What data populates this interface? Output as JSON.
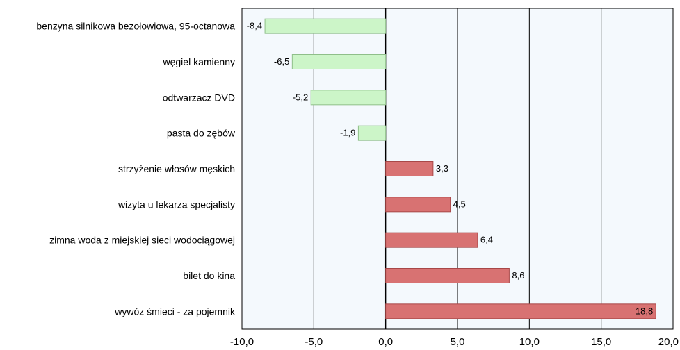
{
  "chart_data": {
    "type": "bar",
    "orientation": "horizontal",
    "categories": [
      "benzyna silnikowa bezołowiowa, 95-octanowa",
      "węgiel kamienny",
      "odtwarzacz DVD",
      "pasta do zębów",
      "strzyżenie włosów męskich",
      "wizyta u lekarza specjalisty",
      "zimna woda z miejskiej sieci wodociągowej",
      "bilet do kina",
      "wywóz śmieci - za pojemnik"
    ],
    "values": [
      -8.4,
      -6.5,
      -5.2,
      -1.9,
      3.3,
      4.5,
      6.4,
      8.6,
      18.8
    ],
    "value_labels": [
      "-8,4",
      "-6,5",
      "-5,2",
      "-1,9",
      "3,3",
      "4,5",
      "6,4",
      "8,6",
      "18,8"
    ],
    "xlim": [
      -10,
      20
    ],
    "x_ticks": [
      -10,
      -5,
      0,
      5,
      10,
      15,
      20
    ],
    "x_tick_labels": [
      "-10,0",
      "-5,0",
      "0,0",
      "5,0",
      "10,0",
      "15,0",
      "20,0"
    ],
    "grid": true,
    "colors": {
      "negative_fill": "#ccf5c8",
      "negative_stroke": "#8fbf8a",
      "positive_fill": "#d87272",
      "positive_stroke": "#a84848",
      "plot_background": "#f4f9fd",
      "gridline": "#000000"
    }
  }
}
